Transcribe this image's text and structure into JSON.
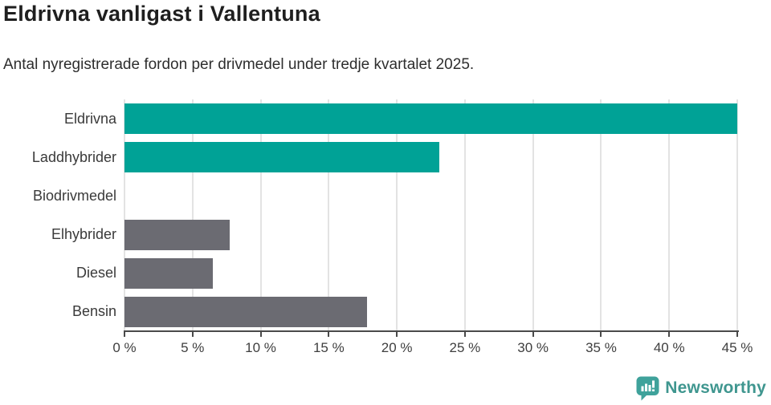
{
  "header": {
    "title": "Eldrivna vanligast i Vallentuna",
    "subtitle": "Antal nyregistrerade fordon per drivmedel under tredje kvartalet 2025."
  },
  "chart_data": {
    "type": "bar",
    "orientation": "horizontal",
    "title": "Eldrivna vanligast i Vallentuna",
    "subtitle": "Antal nyregistrerade fordon per drivmedel under tredje kvartalet 2025.",
    "categories": [
      "Eldrivna",
      "Laddhybrider",
      "Biodrivmedel",
      "Elhybrider",
      "Diesel",
      "Bensin"
    ],
    "values": [
      45.0,
      23.1,
      0,
      7.7,
      6.5,
      17.8
    ],
    "unit": "%",
    "bar_colors": [
      "#00a296",
      "#00a296",
      "#00a296",
      "#6b6b72",
      "#6b6b72",
      "#6b6b72"
    ],
    "xlim": [
      0,
      45
    ],
    "x_ticks": [
      {
        "value": 0,
        "label": "0 %"
      },
      {
        "value": 5,
        "label": "5 %"
      },
      {
        "value": 10,
        "label": "10 %"
      },
      {
        "value": 15,
        "label": "15 %"
      },
      {
        "value": 20,
        "label": "20 %"
      },
      {
        "value": 25,
        "label": "25 %"
      },
      {
        "value": 30,
        "label": "30 %"
      },
      {
        "value": 35,
        "label": "35 %"
      },
      {
        "value": 40,
        "label": "40 %"
      },
      {
        "value": 45,
        "label": "45 %"
      }
    ],
    "grid": "vertical-light",
    "xlabel": "",
    "ylabel": "",
    "legend": "none"
  },
  "colors": {
    "highlight_teal": "#00a296",
    "neutral_gray": "#6b6b72",
    "axis": "#4a4a4a",
    "gridline": "#e3e3e3",
    "brand_teal": "#3f968f",
    "icon_teal": "#3fa29b"
  },
  "footer": {
    "brand": "Newsworthy"
  }
}
